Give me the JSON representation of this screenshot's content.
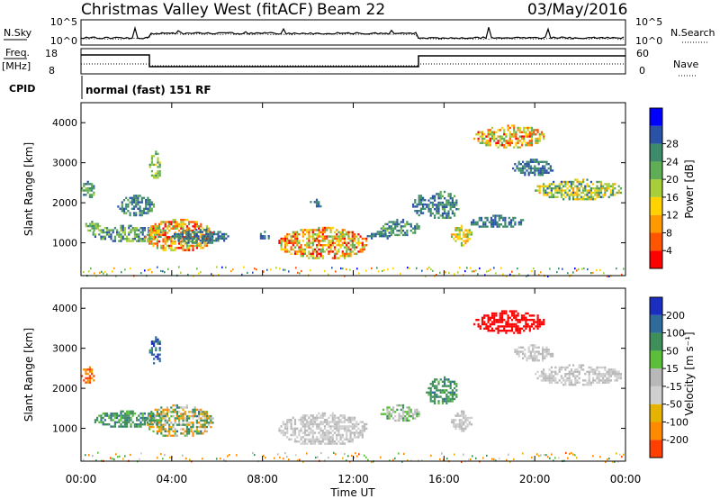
{
  "header": {
    "title": "Christmas Valley West (fitACF)",
    "beam": "Beam 22",
    "date": "03/May/2016"
  },
  "params": {
    "nsky_label": "N.Sky",
    "nsky_ticks": [
      "10^5",
      "10^0"
    ],
    "nsearch_label": "N.Search",
    "nsearch_ticks": [
      "10^5",
      "10^0"
    ],
    "freq_label": "Freq.",
    "freq_unit": "[MHz]",
    "freq_ticks": [
      "18",
      "8"
    ],
    "nave_label": "Nave",
    "nave_ticks": [
      "60",
      "0"
    ],
    "cpid_label": "CPID",
    "cpid_value": "normal (fast) 151 RF"
  },
  "colors": {
    "power": [
      "#0000ff",
      "#2a52a6",
      "#3d8b6a",
      "#5fae55",
      "#a8cf3a",
      "#ffd200",
      "#ff9900",
      "#ff5500",
      "#ff0000"
    ],
    "velocity": [
      "#1a2fbf",
      "#2f6b9a",
      "#3f8f5b",
      "#5bbf3b",
      "#b8b8b8",
      "#cfcfcf",
      "#e6b400",
      "#ff8a00",
      "#ff4000",
      "#ff0000"
    ],
    "ground": "#a9a9a9"
  },
  "chart_data": [
    {
      "type": "heatmap",
      "name": "power",
      "ylabel": "Slant Range [km]",
      "xlabel": "Time UT",
      "x_ticks": [
        "00:00",
        "04:00",
        "08:00",
        "12:00",
        "16:00",
        "20:00",
        "00:00"
      ],
      "y_ticks": [
        "1000",
        "2000",
        "3000",
        "4000"
      ],
      "xlim_hours": [
        0,
        24
      ],
      "ylim_km": [
        180,
        4500
      ],
      "colorbar_label": "Power [dB]",
      "colorbar_ticks": [
        "4",
        "8",
        "12",
        "16",
        "20",
        "24",
        "28"
      ],
      "colorbar_range": [
        0,
        30
      ],
      "regions": [
        {
          "t0": 0.0,
          "t1": 0.6,
          "r0": 2150,
          "r1": 2550,
          "v0": 6,
          "v1": 14
        },
        {
          "t0": 0.1,
          "t1": 0.8,
          "r0": 1300,
          "r1": 1550,
          "v0": 8,
          "v1": 16
        },
        {
          "t0": 0.5,
          "t1": 3.6,
          "r0": 1050,
          "r1": 1450,
          "v0": 4,
          "v1": 16
        },
        {
          "t0": 1.6,
          "t1": 3.2,
          "r0": 1700,
          "r1": 2200,
          "v0": 4,
          "v1": 12
        },
        {
          "t0": 3.0,
          "t1": 3.5,
          "r0": 2600,
          "r1": 3300,
          "v0": 8,
          "v1": 18
        },
        {
          "t0": 2.8,
          "t1": 5.8,
          "r0": 800,
          "r1": 1600,
          "v0": 10,
          "v1": 30
        },
        {
          "t0": 4.0,
          "t1": 6.5,
          "r0": 1000,
          "r1": 1350,
          "v0": 4,
          "v1": 10
        },
        {
          "t0": 7.8,
          "t1": 8.3,
          "r0": 1100,
          "r1": 1300,
          "v0": 4,
          "v1": 8
        },
        {
          "t0": 8.7,
          "t1": 12.6,
          "r0": 600,
          "r1": 1400,
          "v0": 10,
          "v1": 30
        },
        {
          "t0": 12.6,
          "t1": 13.6,
          "r0": 1100,
          "r1": 1300,
          "v0": 4,
          "v1": 10
        },
        {
          "t0": 13.2,
          "t1": 14.9,
          "r0": 1200,
          "r1": 1600,
          "v0": 4,
          "v1": 14
        },
        {
          "t0": 14.6,
          "t1": 15.2,
          "r0": 1700,
          "r1": 2200,
          "v0": 4,
          "v1": 10
        },
        {
          "t0": 16.3,
          "t1": 17.2,
          "r0": 950,
          "r1": 1450,
          "v0": 10,
          "v1": 22
        },
        {
          "t0": 15.2,
          "t1": 16.6,
          "r0": 1600,
          "r1": 2300,
          "v0": 4,
          "v1": 12
        },
        {
          "t0": 17.3,
          "t1": 20.4,
          "r0": 3400,
          "r1": 3950,
          "v0": 10,
          "v1": 28
        },
        {
          "t0": 20.0,
          "t1": 23.8,
          "r0": 2100,
          "r1": 2600,
          "v0": 6,
          "v1": 22
        },
        {
          "t0": 19.0,
          "t1": 20.8,
          "r0": 2700,
          "r1": 3100,
          "v0": 4,
          "v1": 10
        },
        {
          "t0": 17.0,
          "t1": 19.5,
          "r0": 1400,
          "r1": 1700,
          "v0": 4,
          "v1": 10
        },
        {
          "t0": 10.0,
          "t1": 10.6,
          "r0": 1900,
          "r1": 2100,
          "v0": 4,
          "v1": 8
        }
      ],
      "ground_band": {
        "r0": 180,
        "r1": 420,
        "v0": 2,
        "v1": 26
      }
    },
    {
      "type": "heatmap",
      "name": "velocity",
      "ylabel": "Slant Range [km]",
      "xlabel": "Time UT",
      "x_ticks": [
        "00:00",
        "04:00",
        "08:00",
        "12:00",
        "16:00",
        "20:00",
        "00:00"
      ],
      "y_ticks": [
        "1000",
        "2000",
        "3000",
        "4000"
      ],
      "xlim_hours": [
        0,
        24
      ],
      "ylim_km": [
        180,
        4500
      ],
      "colorbar_label": "Velocity [m s⁻¹]",
      "colorbar_ticks": [
        "200",
        "100",
        "50",
        "15",
        "-15",
        "-50",
        "-100",
        "-200"
      ],
      "regions": [
        {
          "t0": 0.0,
          "t1": 0.6,
          "r0": 2150,
          "r1": 2550,
          "v0": -150,
          "v1": -30
        },
        {
          "t0": 0.5,
          "t1": 3.6,
          "r0": 1050,
          "r1": 1450,
          "v0": 20,
          "v1": 90
        },
        {
          "t0": 2.8,
          "t1": 5.8,
          "r0": 800,
          "r1": 1600,
          "v0": -60,
          "v1": 80
        },
        {
          "t0": 3.0,
          "t1": 3.5,
          "r0": 2600,
          "r1": 3300,
          "v0": 50,
          "v1": 200
        },
        {
          "t0": 8.7,
          "t1": 12.6,
          "r0": 600,
          "r1": 1400,
          "v0": -10,
          "v1": 10
        },
        {
          "t0": 13.2,
          "t1": 14.9,
          "r0": 1200,
          "r1": 1600,
          "v0": -10,
          "v1": 40
        },
        {
          "t0": 15.2,
          "t1": 16.6,
          "r0": 1600,
          "r1": 2300,
          "v0": 20,
          "v1": 80
        },
        {
          "t0": 16.3,
          "t1": 17.2,
          "r0": 950,
          "r1": 1450,
          "v0": -10,
          "v1": 10
        },
        {
          "t0": 17.3,
          "t1": 20.4,
          "r0": 3400,
          "r1": 3950,
          "v0": -240,
          "v1": -160
        },
        {
          "t0": 20.0,
          "t1": 23.8,
          "r0": 2100,
          "r1": 2600,
          "v0": -10,
          "v1": 10
        },
        {
          "t0": 19.0,
          "t1": 20.8,
          "r0": 2700,
          "r1": 3100,
          "v0": -10,
          "v1": 10
        }
      ],
      "ground_band": {
        "r0": 180,
        "r1": 420,
        "v0": -80,
        "v1": 60
      }
    }
  ]
}
